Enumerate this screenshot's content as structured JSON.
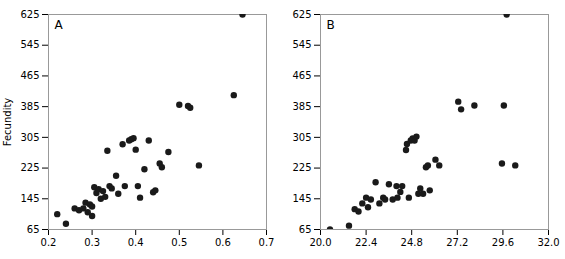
{
  "chart_data": [
    {
      "type": "scatter",
      "annotations": [
        "A"
      ],
      "ylabel": "Fecundity",
      "color": "#1a1a1a",
      "x": [
        0.22,
        0.24,
        0.26,
        0.27,
        0.28,
        0.285,
        0.29,
        0.295,
        0.3,
        0.3,
        0.305,
        0.31,
        0.315,
        0.32,
        0.325,
        0.33,
        0.335,
        0.34,
        0.345,
        0.355,
        0.36,
        0.37,
        0.375,
        0.385,
        0.39,
        0.395,
        0.4,
        0.405,
        0.41,
        0.42,
        0.43,
        0.44,
        0.445,
        0.455,
        0.46,
        0.475,
        0.5,
        0.52,
        0.525,
        0.545,
        0.625,
        0.645
      ],
      "values": [
        105,
        80,
        120,
        115,
        120,
        135,
        110,
        130,
        100,
        125,
        175,
        160,
        170,
        145,
        165,
        150,
        270,
        178,
        172,
        205,
        158,
        287,
        178,
        297,
        300,
        303,
        273,
        178,
        148,
        222,
        297,
        162,
        167,
        237,
        227,
        267,
        390,
        387,
        382,
        232,
        415,
        625
      ],
      "xlim": [
        0.2,
        0.7
      ],
      "xticks": [
        0.2,
        0.3,
        0.4,
        0.5,
        0.6,
        0.7
      ],
      "ylim": [
        65,
        625
      ],
      "yticks": [
        65,
        145,
        225,
        305,
        385,
        465,
        545,
        625
      ]
    },
    {
      "type": "scatter",
      "annotations": [
        "B"
      ],
      "color": "#1a1a1a",
      "x": [
        20.5,
        21.5,
        21.8,
        22.0,
        22.2,
        22.4,
        22.5,
        22.65,
        22.9,
        23.1,
        23.3,
        23.4,
        23.6,
        23.8,
        24.0,
        24.05,
        24.2,
        24.3,
        24.5,
        24.55,
        24.65,
        24.75,
        24.85,
        24.95,
        25.05,
        25.15,
        25.25,
        25.4,
        25.55,
        25.65,
        25.75,
        26.05,
        26.25,
        27.25,
        27.4,
        28.1,
        29.55,
        29.65,
        29.8,
        30.25
      ],
      "values": [
        65,
        75,
        118,
        112,
        133,
        148,
        123,
        143,
        188,
        133,
        148,
        143,
        183,
        143,
        178,
        148,
        163,
        178,
        272,
        288,
        148,
        297,
        302,
        297,
        307,
        158,
        172,
        158,
        227,
        232,
        167,
        247,
        232,
        398,
        378,
        388,
        237,
        388,
        625,
        232
      ],
      "xlim": [
        20.0,
        32.0
      ],
      "xticks": [
        {
          "value": 20.0,
          "label": "20.0"
        },
        22.4,
        24.8,
        27.2,
        29.6,
        {
          "value": 32.0,
          "label": "32.0"
        }
      ],
      "ylim": [
        65,
        625
      ],
      "yticks": [
        65,
        145,
        225,
        305,
        385,
        465,
        545,
        625
      ]
    }
  ]
}
